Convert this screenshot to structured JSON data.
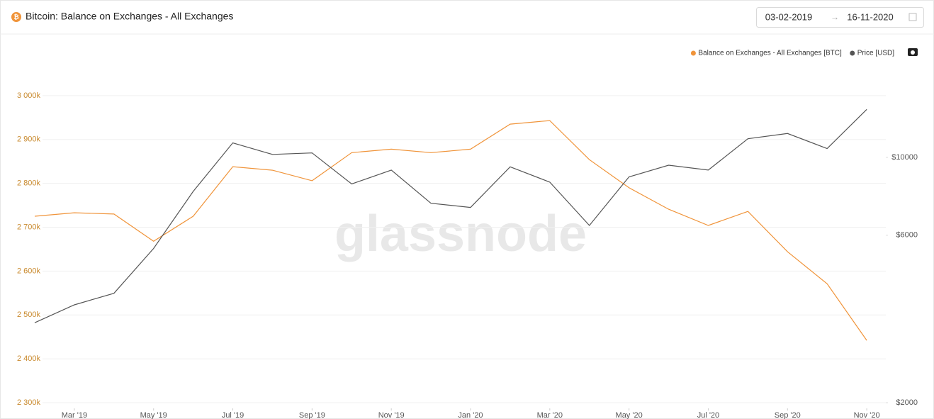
{
  "header": {
    "title": "Bitcoin: Balance on Exchanges - All Exchanges",
    "date_start": "03-02-2019",
    "date_arrow": "→",
    "date_end": "16-11-2020"
  },
  "chart_data": {
    "type": "line",
    "watermark": "glassnode",
    "x": [
      "2019-02",
      "2019-03",
      "2019-04",
      "2019-05",
      "2019-06",
      "2019-07",
      "2019-08",
      "2019-09",
      "2019-10",
      "2019-11",
      "2019-12",
      "2020-01",
      "2020-02",
      "2020-03",
      "2020-04",
      "2020-05",
      "2020-06",
      "2020-07",
      "2020-08",
      "2020-09",
      "2020-10",
      "2020-11"
    ],
    "series": [
      {
        "name": "Balance on Exchanges - All Exchanges [BTC]",
        "color": "#f0943a",
        "axis": "y",
        "values": [
          2725000,
          2733000,
          2730000,
          2668000,
          2725000,
          2838000,
          2830000,
          2806000,
          2870000,
          2878000,
          2870000,
          2878000,
          2935000,
          2943000,
          2854000,
          2790000,
          2741000,
          2704000,
          2736000,
          2644000,
          2571000,
          2442000
        ]
      },
      {
        "name": "Price [USD]",
        "color": "#555555",
        "axis": "y2",
        "values": [
          3380,
          3800,
          4100,
          5500,
          8000,
          11000,
          10200,
          10300,
          8400,
          9200,
          7400,
          7200,
          9400,
          8500,
          6400,
          8800,
          9500,
          9200,
          11300,
          11700,
          10600,
          13700
        ]
      }
    ],
    "xlim": [
      "2019-02",
      "2020-12"
    ],
    "xticks": [
      {
        "value": "2019-03",
        "label": "Mar '19"
      },
      {
        "value": "2019-05",
        "label": "May '19"
      },
      {
        "value": "2019-07",
        "label": "Jul '19"
      },
      {
        "value": "2019-09",
        "label": "Sep '19"
      },
      {
        "value": "2019-11",
        "label": "Nov '19"
      },
      {
        "value": "2020-01",
        "label": "Jan '20"
      },
      {
        "value": "2020-03",
        "label": "Mar '20"
      },
      {
        "value": "2020-05",
        "label": "May '20"
      },
      {
        "value": "2020-07",
        "label": "Jul '20"
      },
      {
        "value": "2020-09",
        "label": "Sep '20"
      },
      {
        "value": "2020-11",
        "label": "Nov '20"
      }
    ],
    "ylim": [
      2300000,
      3100000
    ],
    "yticks": [
      {
        "value": 2300000,
        "label": "2 300k"
      },
      {
        "value": 2400000,
        "label": "2 400k"
      },
      {
        "value": 2500000,
        "label": "2 500k"
      },
      {
        "value": 2600000,
        "label": "2 600k"
      },
      {
        "value": 2700000,
        "label": "2 700k"
      },
      {
        "value": 2800000,
        "label": "2 800k"
      },
      {
        "value": 2900000,
        "label": "2 900k"
      },
      {
        "value": 3000000,
        "label": "3 000k"
      }
    ],
    "y2lim": [
      2000,
      20000
    ],
    "y2log": true,
    "y2ticks": [
      {
        "value": 2000,
        "label": "$2000"
      },
      {
        "value": 6000,
        "label": "$6000"
      },
      {
        "value": 10000,
        "label": "$10000"
      }
    ],
    "grid": true
  }
}
